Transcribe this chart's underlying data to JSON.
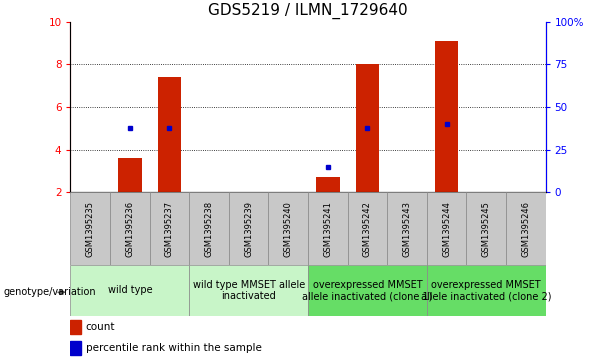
{
  "title": "GDS5219 / ILMN_1729640",
  "samples": [
    "GSM1395235",
    "GSM1395236",
    "GSM1395237",
    "GSM1395238",
    "GSM1395239",
    "GSM1395240",
    "GSM1395241",
    "GSM1395242",
    "GSM1395243",
    "GSM1395244",
    "GSM1395245",
    "GSM1395246"
  ],
  "counts": [
    2.0,
    3.6,
    7.4,
    2.0,
    2.0,
    2.0,
    2.7,
    8.0,
    2.0,
    9.1,
    2.0,
    2.0
  ],
  "percentile_pct": [
    null,
    38,
    38,
    null,
    null,
    null,
    15,
    38,
    null,
    40,
    null,
    null
  ],
  "y_min": 2.0,
  "y_max": 10.0,
  "y_ticks_left": [
    2,
    4,
    6,
    8,
    10
  ],
  "y_ticks_right_pct": [
    0,
    25,
    50,
    75,
    100
  ],
  "y_right_labels": [
    "0",
    "25",
    "50",
    "75",
    "100%"
  ],
  "groups": [
    {
      "label": "wild type",
      "start": 0,
      "end": 3,
      "color": "#c8f5c8"
    },
    {
      "label": "wild type MMSET allele\ninactivated",
      "start": 3,
      "end": 6,
      "color": "#c8f5c8"
    },
    {
      "label": "overexpressed MMSET\nallele inactivated (clone 1)",
      "start": 6,
      "end": 9,
      "color": "#66dd66"
    },
    {
      "label": "overexpressed MMSET\nallele inactivated (clone 2)",
      "start": 9,
      "end": 12,
      "color": "#66dd66"
    }
  ],
  "bar_color": "#cc2200",
  "dot_color": "#0000cc",
  "grid_color": "#000000",
  "tick_bg_color": "#c8c8c8",
  "title_fontsize": 11,
  "tick_fontsize": 7.5,
  "sample_fontsize": 6,
  "group_fontsize": 7
}
